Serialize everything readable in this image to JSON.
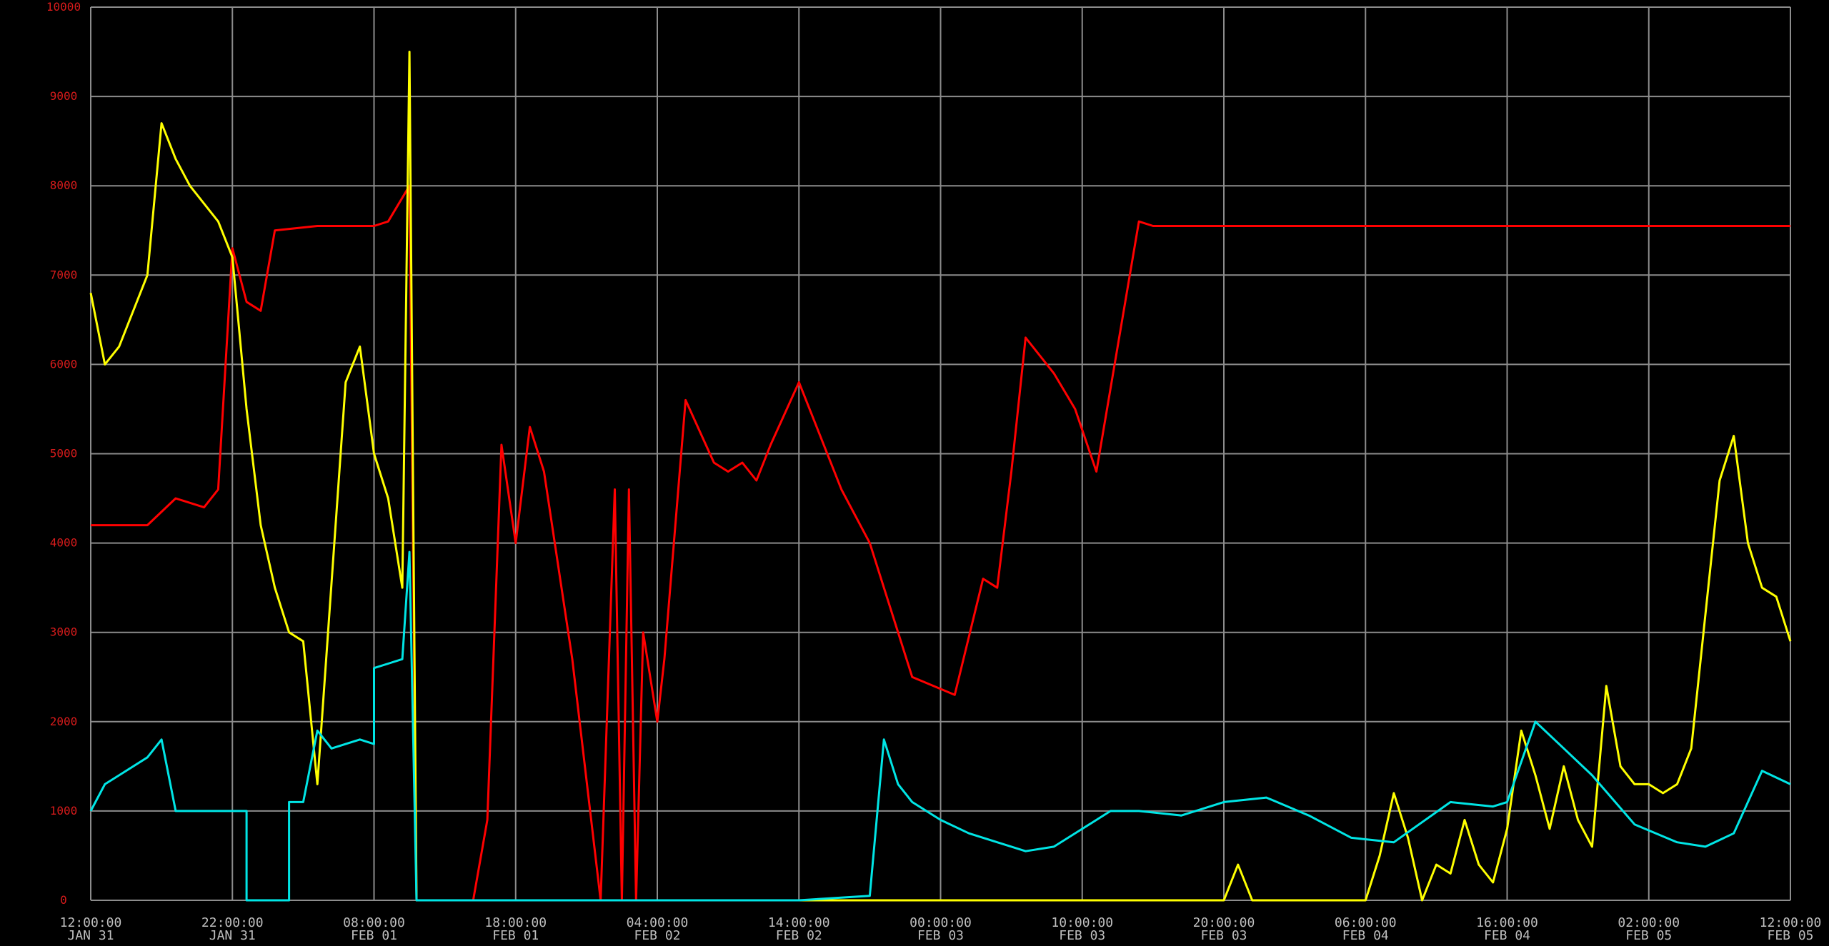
{
  "chart_data": {
    "type": "line",
    "title": "",
    "xlabel": "",
    "ylabel": "",
    "ylim": [
      0,
      10000
    ],
    "xlim": [
      "2024-01-31 12:00",
      "2024-02-05 12:00"
    ],
    "grid": true,
    "legend": "none",
    "yticks": [
      "0",
      "1000",
      "2000",
      "3000",
      "4000",
      "5000",
      "6000",
      "7000",
      "8000",
      "9000",
      "10000"
    ],
    "xticks": [
      {
        "time": "12:00:00",
        "date": "JAN 31"
      },
      {
        "time": "22:00:00",
        "date": "JAN 31"
      },
      {
        "time": "08:00:00",
        "date": "FEB 01"
      },
      {
        "time": "18:00:00",
        "date": "FEB 01"
      },
      {
        "time": "04:00:00",
        "date": "FEB 02"
      },
      {
        "time": "14:00:00",
        "date": "FEB 02"
      },
      {
        "time": "00:00:00",
        "date": "FEB 03"
      },
      {
        "time": "10:00:00",
        "date": "FEB 03"
      },
      {
        "time": "20:00:00",
        "date": "FEB 03"
      },
      {
        "time": "06:00:00",
        "date": "FEB 04"
      },
      {
        "time": "16:00:00",
        "date": "FEB 04"
      },
      {
        "time": "02:00:00",
        "date": "FEB 05"
      },
      {
        "time": "12:00:00",
        "date": "FEB 05"
      }
    ],
    "series": [
      {
        "color": "#ff0000",
        "x": [
          "2024-01-31 12:00",
          "2024-01-31 14:00",
          "2024-01-31 16:00",
          "2024-01-31 18:00",
          "2024-01-31 20:00",
          "2024-01-31 21:00",
          "2024-01-31 22:00",
          "2024-01-31 23:00",
          "2024-02-01 00:00",
          "2024-02-01 01:00",
          "2024-02-01 04:00",
          "2024-02-01 08:00",
          "2024-02-01 09:00",
          "2024-02-01 10:30",
          "2024-02-01 11:00",
          "2024-02-01 13:00",
          "2024-02-01 15:00",
          "2024-02-01 16:00",
          "2024-02-01 17:00",
          "2024-02-01 18:00",
          "2024-02-01 19:00",
          "2024-02-01 20:00",
          "2024-02-01 22:00",
          "2024-02-02 00:00",
          "2024-02-02 01:00",
          "2024-02-02 01:30",
          "2024-02-02 02:00",
          "2024-02-02 02:30",
          "2024-02-02 03:00",
          "2024-02-02 04:00",
          "2024-02-02 04:30",
          "2024-02-02 06:00",
          "2024-02-02 08:00",
          "2024-02-02 09:00",
          "2024-02-02 10:00",
          "2024-02-02 11:00",
          "2024-02-02 12:00",
          "2024-02-02 14:00",
          "2024-02-02 17:00",
          "2024-02-02 19:00",
          "2024-02-02 22:00",
          "2024-02-03 01:00",
          "2024-02-03 03:00",
          "2024-02-03 04:00",
          "2024-02-03 05:00",
          "2024-02-03 06:00",
          "2024-02-03 08:00",
          "2024-02-03 09:30",
          "2024-02-03 11:00",
          "2024-02-03 14:00",
          "2024-02-03 15:00",
          "2024-02-03 20:00",
          "2024-02-04 06:00",
          "2024-02-04 16:00",
          "2024-02-05 02:00",
          "2024-02-05 12:00"
        ],
        "y": [
          4200,
          4200,
          4200,
          4500,
          4400,
          4600,
          7300,
          6700,
          6600,
          7500,
          7550,
          7550,
          7600,
          8000,
          0,
          0,
          0,
          900,
          5100,
          4000,
          5300,
          4800,
          2700,
          0,
          4600,
          0,
          4600,
          0,
          3000,
          2000,
          2700,
          5600,
          4900,
          4800,
          4900,
          4700,
          5100,
          5800,
          4600,
          4000,
          2500,
          2300,
          3600,
          3500,
          4800,
          6300,
          5900,
          5500,
          4800,
          7600,
          7550,
          7550,
          7550,
          7550,
          7550,
          7550
        ]
      },
      {
        "color": "#ffff00",
        "x": [
          "2024-01-31 12:00",
          "2024-01-31 13:00",
          "2024-01-31 14:00",
          "2024-01-31 16:00",
          "2024-01-31 17:00",
          "2024-01-31 18:00",
          "2024-01-31 19:00",
          "2024-01-31 21:00",
          "2024-01-31 22:00",
          "2024-01-31 23:00",
          "2024-02-01 00:00",
          "2024-02-01 01:00",
          "2024-02-01 02:00",
          "2024-02-01 03:00",
          "2024-02-01 04:00",
          "2024-02-01 06:00",
          "2024-02-01 07:00",
          "2024-02-01 08:00",
          "2024-02-01 09:00",
          "2024-02-01 10:00",
          "2024-02-01 10:30",
          "2024-02-01 11:00",
          "2024-02-01 12:00",
          "2024-02-02 00:00",
          "2024-02-03 00:00",
          "2024-02-03 20:00",
          "2024-02-03 21:00",
          "2024-02-03 22:00",
          "2024-02-04 04:00",
          "2024-02-04 06:00",
          "2024-02-04 07:00",
          "2024-02-04 08:00",
          "2024-02-04 09:00",
          "2024-02-04 10:00",
          "2024-02-04 11:00",
          "2024-02-04 12:00",
          "2024-02-04 13:00",
          "2024-02-04 14:00",
          "2024-02-04 15:00",
          "2024-02-04 16:00",
          "2024-02-04 17:00",
          "2024-02-04 18:00",
          "2024-02-04 19:00",
          "2024-02-04 20:00",
          "2024-02-04 21:00",
          "2024-02-04 22:00",
          "2024-02-04 23:00",
          "2024-02-05 00:00",
          "2024-02-05 01:00",
          "2024-02-05 02:00",
          "2024-02-05 03:00",
          "2024-02-05 04:00",
          "2024-02-05 05:00",
          "2024-02-05 06:00",
          "2024-02-05 07:00",
          "2024-02-05 08:00",
          "2024-02-05 09:00",
          "2024-02-05 10:00",
          "2024-02-05 11:00",
          "2024-02-05 12:00"
        ],
        "y": [
          6800,
          6000,
          6200,
          7000,
          8700,
          8300,
          8000,
          7600,
          7200,
          5500,
          4200,
          3500,
          3000,
          2900,
          1300,
          5800,
          6200,
          5000,
          4500,
          3500,
          9500,
          0,
          0,
          0,
          0,
          0,
          400,
          0,
          0,
          0,
          500,
          1200,
          700,
          0,
          400,
          300,
          900,
          400,
          200,
          800,
          1900,
          1400,
          800,
          1500,
          900,
          600,
          2400,
          1500,
          1300,
          1300,
          1200,
          1300,
          1700,
          3200,
          4700,
          5200,
          4000,
          3500,
          3400,
          2900
        ]
      },
      {
        "color": "#00e5e5",
        "x": [
          "2024-01-31 12:00",
          "2024-01-31 13:00",
          "2024-01-31 14:00",
          "2024-01-31 16:00",
          "2024-01-31 17:00",
          "2024-01-31 18:00",
          "2024-01-31 20:00",
          "2024-01-31 23:00",
          "2024-01-31 23:00",
          "2024-02-01 02:00",
          "2024-02-01 02:00",
          "2024-02-01 03:00",
          "2024-02-01 04:00",
          "2024-02-01 05:00",
          "2024-02-01 06:00",
          "2024-02-01 07:00",
          "2024-02-01 08:00",
          "2024-02-01 08:00",
          "2024-02-01 09:00",
          "2024-02-01 10:00",
          "2024-02-01 10:30",
          "2024-02-01 11:00",
          "2024-02-02 14:00",
          "2024-02-02 19:00",
          "2024-02-02 20:00",
          "2024-02-02 21:00",
          "2024-02-02 22:00",
          "2024-02-03 00:00",
          "2024-02-03 02:00",
          "2024-02-03 04:00",
          "2024-02-03 06:00",
          "2024-02-03 08:00",
          "2024-02-03 10:00",
          "2024-02-03 12:00",
          "2024-02-03 14:00",
          "2024-02-03 17:00",
          "2024-02-03 20:00",
          "2024-02-03 23:00",
          "2024-02-04 02:00",
          "2024-02-04 05:00",
          "2024-02-04 08:00",
          "2024-02-04 12:00",
          "2024-02-04 15:00",
          "2024-02-04 16:00",
          "2024-02-04 18:00",
          "2024-02-04 20:00",
          "2024-02-04 22:00",
          "2024-02-05 01:00",
          "2024-02-05 04:00",
          "2024-02-05 06:00",
          "2024-02-05 08:00",
          "2024-02-05 10:00",
          "2024-02-05 12:00"
        ],
        "y": [
          1000,
          1300,
          1400,
          1600,
          1800,
          1000,
          1000,
          1000,
          0,
          0,
          1100,
          1100,
          1900,
          1700,
          1750,
          1800,
          1750,
          2600,
          2650,
          2700,
          3900,
          0,
          0,
          50,
          1800,
          1300,
          1100,
          900,
          750,
          650,
          550,
          600,
          800,
          1000,
          1000,
          950,
          1100,
          1150,
          950,
          700,
          650,
          1100,
          1050,
          1100,
          2000,
          1700,
          1400,
          850,
          650,
          600,
          750,
          1450,
          1300
        ]
      }
    ]
  }
}
